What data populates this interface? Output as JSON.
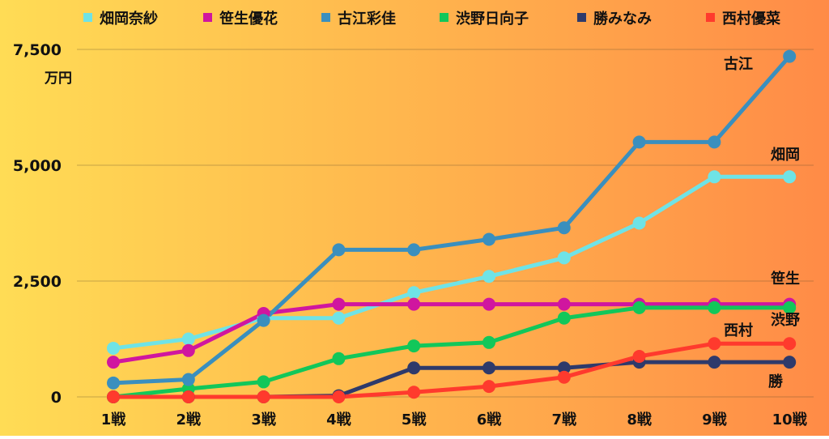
{
  "chart_data": {
    "type": "line",
    "categories": [
      "1戦",
      "2戦",
      "3戦",
      "4戦",
      "5戦",
      "6戦",
      "7戦",
      "8戦",
      "9戦",
      "10戦"
    ],
    "y_unit": "万円",
    "ylim": [
      0,
      7500
    ],
    "y_ticks": [
      {
        "value": 0,
        "label": "0"
      },
      {
        "value": 2500,
        "label": "2,500"
      },
      {
        "value": 5000,
        "label": "5,000"
      },
      {
        "value": 7500,
        "label": "7,500"
      }
    ],
    "grid": "horizontal",
    "legend_position": "top",
    "series": [
      {
        "name": "畑岡奈紗",
        "short": "畑岡",
        "color": "#6FE3E6",
        "values": [
          1050,
          1250,
          1700,
          1700,
          2250,
          2600,
          3000,
          3750,
          4750,
          4750
        ]
      },
      {
        "name": "笹生優花",
        "short": "笹生",
        "color": "#D0169F",
        "values": [
          750,
          1000,
          1800,
          2000,
          2000,
          2000,
          2000,
          2000,
          2000,
          2000
        ]
      },
      {
        "name": "古江彩佳",
        "short": "古江",
        "color": "#3A8FBE",
        "values": [
          300,
          375,
          1650,
          3175,
          3175,
          3400,
          3650,
          5500,
          5500,
          7350
        ]
      },
      {
        "name": "渋野日向子",
        "short": "渋野",
        "color": "#12C75A",
        "values": [
          0,
          175,
          325,
          825,
          1100,
          1175,
          1700,
          1925,
          1925,
          1925
        ]
      },
      {
        "name": "勝みなみ",
        "short": "勝",
        "color": "#2E3A6B",
        "values": [
          0,
          0,
          0,
          25,
          625,
          625,
          625,
          750,
          750,
          750
        ]
      },
      {
        "name": "西村優菜",
        "short": "西村",
        "color": "#FF3A2D",
        "values": [
          0,
          0,
          0,
          0,
          100,
          225,
          425,
          875,
          1150,
          1150
        ]
      }
    ]
  }
}
